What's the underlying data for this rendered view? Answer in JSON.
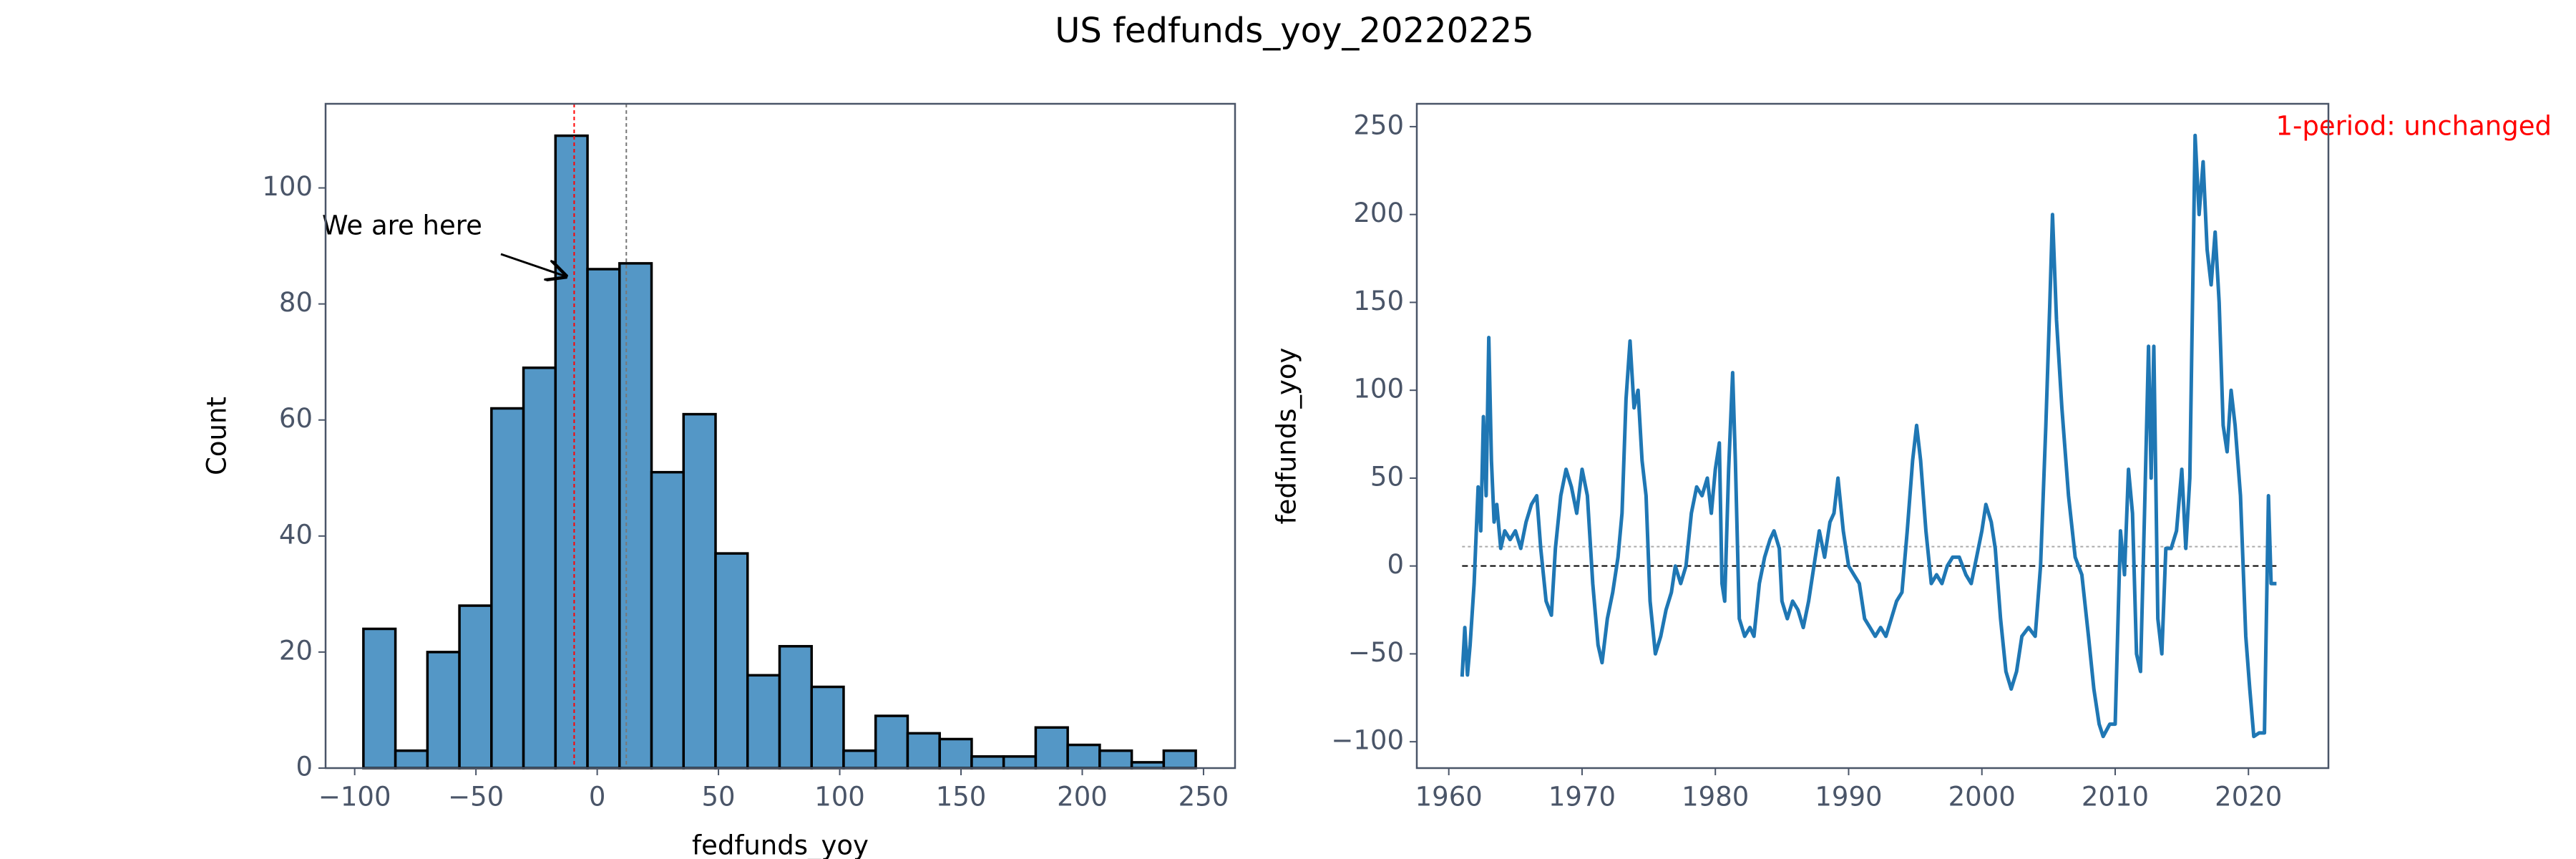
{
  "title": "US fedfunds_yoy_20220225",
  "chart_data": [
    {
      "type": "histogram",
      "xlabel": "fedfunds_yoy",
      "ylabel": "Count",
      "color": "#5497c6",
      "edgecolor": "#000000",
      "bins": [
        -96.4,
        -83.2,
        -70.0,
        -56.8,
        -43.6,
        -30.4,
        -17.2,
        -4.0,
        9.2,
        22.4,
        35.6,
        48.8,
        62.0,
        75.2,
        88.4,
        101.6,
        114.8,
        128.0,
        141.2,
        154.4,
        167.6,
        180.8,
        194.0,
        207.2,
        220.4,
        233.6,
        246.8
      ],
      "values": [
        24,
        3,
        20,
        28,
        62,
        69,
        109,
        86,
        87,
        51,
        61,
        37,
        16,
        21,
        14,
        3,
        9,
        6,
        5,
        2,
        2,
        7,
        4,
        3,
        1,
        3
      ],
      "xlim": [
        -112,
        263
      ],
      "ylim": [
        0,
        114.5
      ],
      "xticks": [
        {
          "value": -100,
          "label": "−100"
        },
        {
          "value": -50,
          "label": "−50"
        },
        0,
        50,
        100,
        150,
        200,
        250
      ],
      "yticks": [
        0,
        20,
        40,
        60,
        80,
        100
      ],
      "vlines": [
        {
          "value": -9.5,
          "color": "#ff0000"
        },
        {
          "value": 12,
          "color": "#777777"
        }
      ],
      "annotation": {
        "text": "We are here",
        "xy": [
          -9.5,
          86
        ]
      }
    },
    {
      "type": "line",
      "ylabel": "fedfunds_yoy",
      "color": "#1f77b4",
      "note": "1-period: unchanged",
      "note_color": "#ff0000",
      "x": [
        1961.0,
        1961.2,
        1961.4,
        1961.6,
        1961.9,
        1962.2,
        1962.4,
        1962.6,
        1962.8,
        1963.0,
        1963.2,
        1963.4,
        1963.6,
        1963.9,
        1964.2,
        1964.6,
        1965.0,
        1965.4,
        1965.8,
        1966.2,
        1966.6,
        1966.9,
        1967.3,
        1967.7,
        1968.0,
        1968.4,
        1968.8,
        1969.2,
        1969.6,
        1970.0,
        1970.4,
        1970.8,
        1971.2,
        1971.5,
        1971.9,
        1972.3,
        1972.7,
        1973.0,
        1973.3,
        1973.6,
        1973.9,
        1974.2,
        1974.5,
        1974.8,
        1975.1,
        1975.5,
        1975.9,
        1976.3,
        1976.7,
        1977.0,
        1977.4,
        1977.8,
        1978.2,
        1978.6,
        1979.0,
        1979.4,
        1979.7,
        1980.0,
        1980.3,
        1980.5,
        1980.7,
        1981.0,
        1981.3,
        1981.5,
        1981.8,
        1982.2,
        1982.6,
        1982.9,
        1983.3,
        1983.7,
        1984.1,
        1984.4,
        1984.8,
        1985.0,
        1985.4,
        1985.8,
        1986.2,
        1986.6,
        1987.0,
        1987.4,
        1987.8,
        1988.2,
        1988.6,
        1988.9,
        1989.2,
        1989.6,
        1990.0,
        1990.4,
        1990.8,
        1991.2,
        1991.6,
        1992.0,
        1992.4,
        1992.8,
        1993.2,
        1993.6,
        1994.0,
        1994.4,
        1994.8,
        1995.1,
        1995.4,
        1995.8,
        1996.2,
        1996.6,
        1997.0,
        1997.4,
        1997.8,
        1998.3,
        1998.8,
        1999.2,
        1999.6,
        2000.0,
        2000.3,
        2000.7,
        2001.0,
        2001.4,
        2001.8,
        2002.2,
        2002.6,
        2003.0,
        2003.5,
        2004.0,
        2004.4,
        2004.8,
        2005.1,
        2005.3,
        2005.6,
        2006.0,
        2006.5,
        2007.0,
        2007.5,
        2008.0,
        2008.4,
        2008.8,
        2009.1,
        2009.6,
        2010.0,
        2010.4,
        2010.7,
        2011.0,
        2011.3,
        2011.6,
        2011.9,
        2012.2,
        2012.5,
        2012.7,
        2012.9,
        2013.2,
        2013.5,
        2013.8,
        2014.2,
        2014.6,
        2015.0,
        2015.3,
        2015.6,
        2016.0,
        2016.3,
        2016.6,
        2016.9,
        2017.2,
        2017.5,
        2017.8,
        2018.1,
        2018.4,
        2018.7,
        2019.0,
        2019.4,
        2019.8,
        2020.1,
        2020.4,
        2020.8,
        2021.2,
        2021.5,
        2021.7,
        2022.0,
        2022.1
      ],
      "values": [
        -63,
        -35,
        -62,
        -45,
        -10,
        45,
        20,
        85,
        40,
        130,
        60,
        25,
        35,
        10,
        20,
        15,
        20,
        10,
        25,
        35,
        40,
        10,
        -20,
        -28,
        10,
        40,
        55,
        45,
        30,
        55,
        40,
        -10,
        -45,
        -55,
        -30,
        -15,
        5,
        30,
        95,
        128,
        90,
        100,
        60,
        40,
        -20,
        -50,
        -40,
        -25,
        -15,
        0,
        -10,
        0,
        30,
        45,
        40,
        50,
        30,
        55,
        70,
        -10,
        -20,
        55,
        110,
        60,
        -30,
        -40,
        -35,
        -40,
        -10,
        5,
        15,
        20,
        10,
        -20,
        -30,
        -20,
        -25,
        -35,
        -20,
        0,
        20,
        5,
        25,
        30,
        50,
        20,
        0,
        -5,
        -10,
        -30,
        -35,
        -40,
        -35,
        -40,
        -30,
        -20,
        -15,
        20,
        60,
        80,
        60,
        20,
        -10,
        -5,
        -10,
        0,
        5,
        5,
        -5,
        -10,
        5,
        20,
        35,
        25,
        10,
        -30,
        -60,
        -70,
        -60,
        -40,
        -35,
        -40,
        0,
        80,
        150,
        200,
        140,
        90,
        40,
        5,
        -5,
        -40,
        -70,
        -90,
        -97,
        -90,
        -90,
        20,
        -5,
        55,
        30,
        -50,
        -60,
        30,
        125,
        50,
        125,
        -30,
        -50,
        10,
        10,
        20,
        55,
        10,
        50,
        245,
        200,
        230,
        180,
        160,
        190,
        150,
        80,
        65,
        100,
        80,
        40,
        -40,
        -70,
        -97,
        -95,
        -95,
        40,
        -10,
        -10,
        -10
      ],
      "xlim": [
        1957.6,
        2026
      ],
      "ylim": [
        -115,
        263
      ],
      "xticks": [
        1960,
        1970,
        1980,
        1990,
        2000,
        2010,
        2020
      ],
      "yticks": [
        {
          "value": -100,
          "label": "−100"
        },
        {
          "value": -50,
          "label": "−50"
        },
        0,
        50,
        100,
        150,
        200,
        250
      ],
      "hlines": [
        {
          "value": 0,
          "color": "#000000",
          "dash": "8,5"
        },
        {
          "value": 11,
          "color": "#aaaaaa",
          "dash": "4,4"
        }
      ]
    }
  ]
}
